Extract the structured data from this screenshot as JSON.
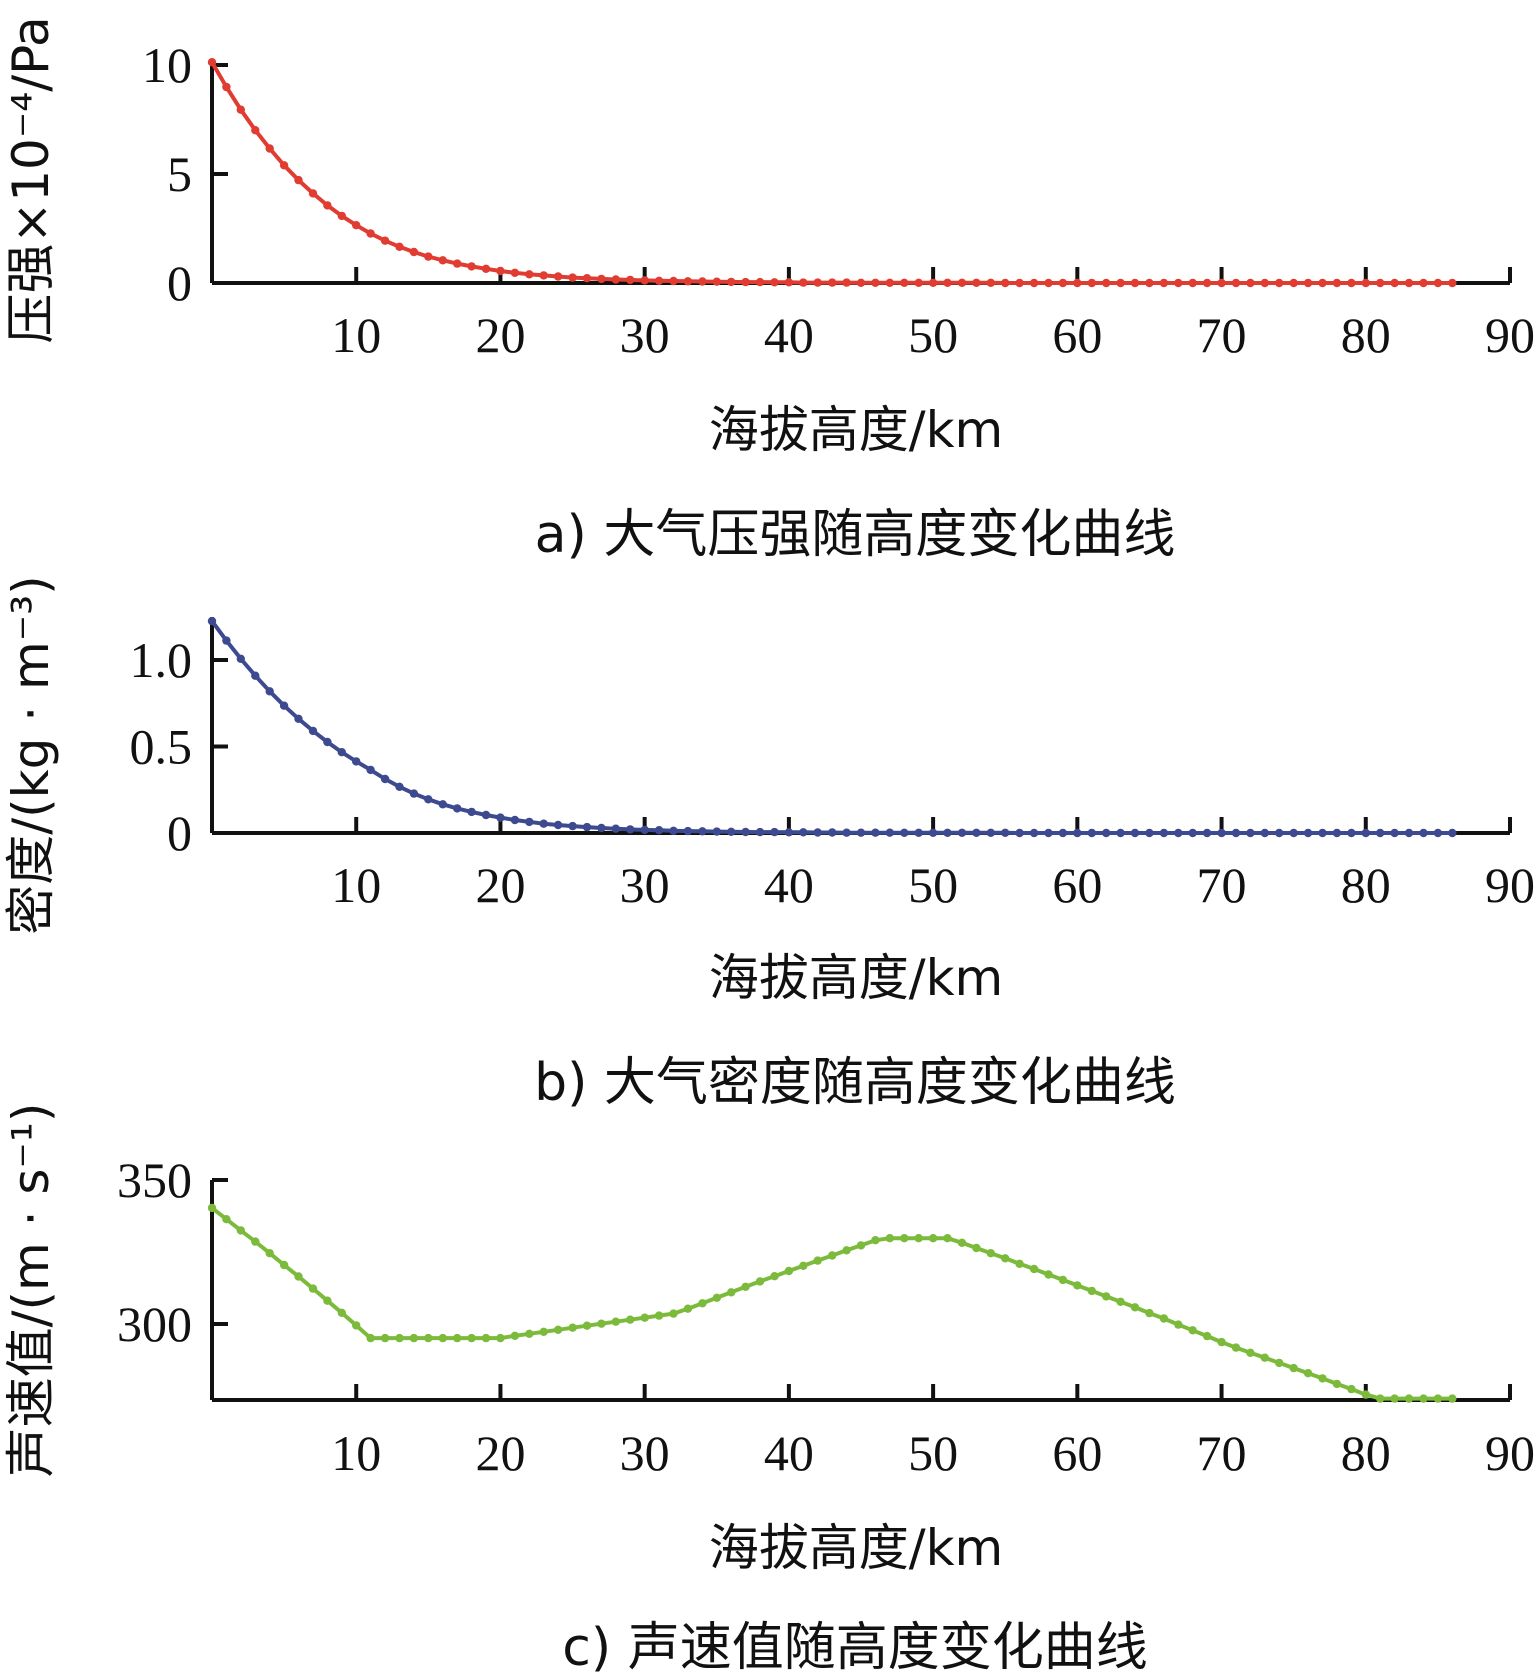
{
  "chart_data": [
    {
      "type": "line",
      "caption": "a) 大气压强随高度变化曲线",
      "xlabel": "海拔高度/km",
      "ylabel": "压强×10⁻⁴/Pa",
      "xlim": [
        0,
        90
      ],
      "ylim": [
        0,
        10
      ],
      "xticks": [
        "10",
        "20",
        "30",
        "40",
        "50",
        "60",
        "70",
        "80",
        "90"
      ],
      "yticks": [
        "0",
        "5",
        "10"
      ],
      "color": "#e03c32",
      "series": [
        {
          "x": [
            0,
            1,
            2,
            3,
            4,
            5,
            6,
            7,
            8,
            9,
            10,
            11,
            12,
            13,
            14,
            15,
            16,
            17,
            18,
            19,
            20,
            21,
            22,
            23,
            24,
            25,
            26,
            27,
            28,
            29,
            30,
            31,
            32,
            33,
            34,
            35,
            36,
            37,
            38,
            39,
            40,
            41,
            42,
            43,
            44,
            45,
            46,
            47,
            48,
            49,
            50,
            51,
            52,
            53,
            54,
            55,
            56,
            57,
            58,
            59,
            60,
            61,
            62,
            63,
            64,
            65,
            66,
            67,
            68,
            69,
            70,
            71,
            72,
            73,
            74,
            75,
            76,
            77,
            78,
            79,
            80,
            81,
            82,
            83,
            84,
            85,
            86
          ],
          "values": [
            10.13,
            8.99,
            7.95,
            7.01,
            6.17,
            5.4,
            4.72,
            4.11,
            3.56,
            3.08,
            2.65,
            2.27,
            1.94,
            1.66,
            1.42,
            1.21,
            1.04,
            0.89,
            0.76,
            0.65,
            0.55,
            0.47,
            0.4,
            0.35,
            0.3,
            0.25,
            0.22,
            0.19,
            0.16,
            0.14,
            0.12,
            0.1,
            0.09,
            0.08,
            0.07,
            0.06,
            0.05,
            0.04,
            0.04,
            0.03,
            0.03,
            0.02,
            0.02,
            0.02,
            0.02,
            0.01,
            0.01,
            0.01,
            0.01,
            0.01,
            0.01,
            0.01,
            0.01,
            0.01,
            0.01,
            0.0,
            0.0,
            0.0,
            0.0,
            0.0,
            0.0,
            0.0,
            0.0,
            0.0,
            0.0,
            0.0,
            0.0,
            0.0,
            0.0,
            0.0,
            0.0,
            0.0,
            0.0,
            0.0,
            0.0,
            0.0,
            0.0,
            0.0,
            0.0,
            0.0,
            0.0,
            0.0,
            0.0,
            0.0,
            0.0,
            0.0,
            0.0
          ]
        }
      ]
    },
    {
      "type": "line",
      "caption": "b) 大气密度随高度变化曲线",
      "xlabel": "海拔高度/km",
      "ylabel": "密度/(kg · m⁻³)",
      "xlim": [
        0,
        90
      ],
      "ylim": [
        0,
        1.25
      ],
      "xticks": [
        "10",
        "20",
        "30",
        "40",
        "50",
        "60",
        "70",
        "80",
        "90"
      ],
      "yticks": [
        "0",
        "0.5",
        "1.0"
      ],
      "color": "#3d4a8f",
      "series": [
        {
          "x": [
            0,
            1,
            2,
            3,
            4,
            5,
            6,
            7,
            8,
            9,
            10,
            11,
            12,
            13,
            14,
            15,
            16,
            17,
            18,
            19,
            20,
            21,
            22,
            23,
            24,
            25,
            26,
            27,
            28,
            29,
            30,
            31,
            32,
            33,
            34,
            35,
            36,
            37,
            38,
            39,
            40,
            41,
            42,
            43,
            44,
            45,
            46,
            47,
            48,
            49,
            50,
            51,
            52,
            53,
            54,
            55,
            56,
            57,
            58,
            59,
            60,
            61,
            62,
            63,
            64,
            65,
            66,
            67,
            68,
            69,
            70,
            71,
            72,
            73,
            74,
            75,
            76,
            77,
            78,
            79,
            80,
            81,
            82,
            83,
            84,
            85,
            86
          ],
          "values": [
            1.225,
            1.112,
            1.007,
            0.909,
            0.819,
            0.736,
            0.66,
            0.59,
            0.526,
            0.467,
            0.414,
            0.365,
            0.312,
            0.267,
            0.228,
            0.195,
            0.166,
            0.142,
            0.122,
            0.104,
            0.089,
            0.075,
            0.064,
            0.054,
            0.046,
            0.04,
            0.034,
            0.029,
            0.025,
            0.021,
            0.018,
            0.016,
            0.013,
            0.011,
            0.01,
            0.008,
            0.007,
            0.006,
            0.005,
            0.005,
            0.004,
            0.004,
            0.003,
            0.003,
            0.002,
            0.002,
            0.002,
            0.002,
            0.001,
            0.001,
            0.001,
            0.001,
            0.001,
            0.001,
            0.001,
            0.001,
            0.0,
            0.0,
            0.0,
            0.0,
            0.0,
            0.0,
            0.0,
            0.0,
            0.0,
            0.0,
            0.0,
            0.0,
            0.0,
            0.0,
            0.0,
            0.0,
            0.0,
            0.0,
            0.0,
            0.0,
            0.0,
            0.0,
            0.0,
            0.0,
            0.0,
            0.0,
            0.0,
            0.0,
            0.0,
            0.0,
            0.0
          ]
        }
      ]
    },
    {
      "type": "line",
      "caption": "c) 声速值随高度变化曲线",
      "xlabel": "海拔高度/km",
      "ylabel": "声速值/(m · s⁻¹)",
      "xlim": [
        0,
        90
      ],
      "ylim": [
        274,
        350
      ],
      "xticks": [
        "10",
        "20",
        "30",
        "40",
        "50",
        "60",
        "70",
        "80",
        "90"
      ],
      "yticks": [
        "300",
        "350"
      ],
      "color": "#7cba3c",
      "series": [
        {
          "x": [
            0,
            1,
            2,
            3,
            4,
            5,
            6,
            7,
            8,
            9,
            10,
            11,
            12,
            13,
            14,
            15,
            16,
            17,
            18,
            19,
            20,
            21,
            22,
            23,
            24,
            25,
            26,
            27,
            28,
            29,
            30,
            31,
            32,
            33,
            34,
            35,
            36,
            37,
            38,
            39,
            40,
            41,
            42,
            43,
            44,
            45,
            46,
            47,
            48,
            49,
            50,
            51,
            52,
            53,
            54,
            55,
            56,
            57,
            58,
            59,
            60,
            61,
            62,
            63,
            64,
            65,
            66,
            67,
            68,
            69,
            70,
            71,
            72,
            73,
            74,
            75,
            76,
            77,
            78,
            79,
            80,
            81,
            82,
            83,
            84,
            85,
            86
          ],
          "values": [
            340.3,
            336.4,
            332.5,
            328.6,
            324.6,
            320.5,
            316.5,
            312.3,
            308.1,
            303.9,
            299.5,
            295.1,
            295.1,
            295.1,
            295.1,
            295.1,
            295.1,
            295.1,
            295.1,
            295.1,
            295.1,
            295.9,
            296.6,
            297.3,
            298.0,
            298.7,
            299.4,
            300.1,
            300.8,
            301.5,
            302.2,
            302.9,
            303.6,
            305.3,
            307.2,
            309.1,
            311.0,
            312.9,
            314.8,
            316.6,
            318.4,
            320.2,
            322.0,
            323.8,
            325.6,
            327.3,
            329.1,
            329.8,
            329.8,
            329.8,
            329.8,
            329.8,
            328.2,
            326.4,
            324.6,
            322.8,
            320.9,
            319.1,
            317.2,
            315.3,
            313.4,
            311.5,
            309.6,
            307.7,
            305.8,
            303.8,
            301.9,
            299.8,
            297.8,
            295.8,
            293.7,
            291.8,
            290.0,
            288.3,
            286.5,
            284.7,
            282.9,
            281.1,
            279.2,
            277.4,
            275.5,
            274.1,
            274.1,
            274.1,
            274.1,
            274.1,
            274.1
          ]
        }
      ]
    }
  ]
}
